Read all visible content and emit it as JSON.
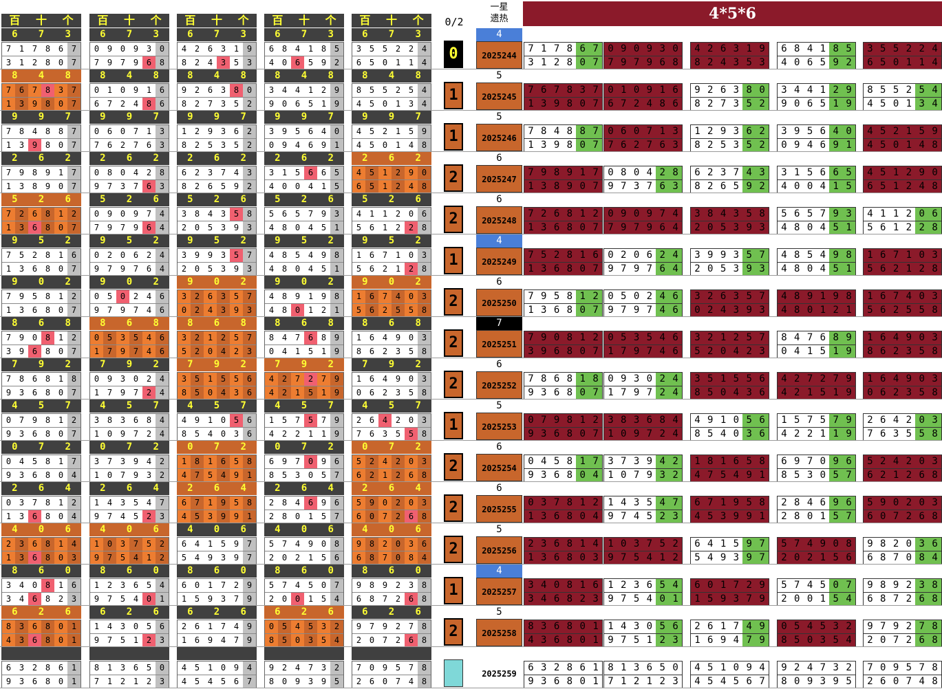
{
  "header": {
    "block_labels": [
      "百",
      "十",
      "个"
    ],
    "count_label": "0/2",
    "yixing_label": "一星\n遗热",
    "banner": "4*5*6"
  },
  "colors": {
    "dark": "#404040",
    "orange": "#ed7d31",
    "darkorange": "#c8662c",
    "red": "#8b1a2a",
    "green": "#70c050",
    "pink": "#f06070",
    "gray": "#c0c0c0",
    "blue": "#4a7fd8",
    "yellow": "#ffff33"
  },
  "rows": [
    {
      "top": [
        "6",
        "7",
        "3"
      ],
      "count": "0",
      "yx": "4",
      "period": "2025244",
      "r1": "717867",
      "r2": "312807",
      "r1b": "090930",
      "r2b": "797968",
      "r1c": "426319",
      "r2c": "824353",
      "r1d": "684185",
      "r2d": "406592",
      "r1e": "355224",
      "r2e": "650114"
    },
    {
      "top": [
        "8",
        "4",
        "8"
      ],
      "count": "1",
      "yx": "5",
      "period": "2025245",
      "r1": "767837",
      "r2": "139807",
      "r1b": "010916",
      "r2b": "672486",
      "r1c": "926380",
      "r2c": "827352",
      "r1d": "344129",
      "r2d": "906519",
      "r1e": "855254",
      "r2e": "450134"
    },
    {
      "top": [
        "9",
        "9",
        "7"
      ],
      "count": "1",
      "yx": "5",
      "period": "2025246",
      "r1": "784887",
      "r2": "139807",
      "r1b": "060713",
      "r2b": "762763",
      "r1c": "129362",
      "r2c": "825352",
      "r1d": "395640",
      "r2d": "094691",
      "r1e": "452159",
      "r2e": "450148"
    },
    {
      "top": [
        "2",
        "6",
        "2"
      ],
      "count": "2",
      "yx": "6",
      "period": "2025247",
      "r1": "798917",
      "r2": "138907",
      "r1b": "080428",
      "r2b": "973763",
      "r1c": "623743",
      "r2c": "826592",
      "r1d": "315665",
      "r2d": "400415",
      "r1e": "451290",
      "r2e": "651248"
    },
    {
      "top": [
        "5",
        "2",
        "6"
      ],
      "count": "2",
      "yx": "6",
      "period": "2025248",
      "r1": "726812",
      "r2": "136807",
      "r1b": "090974",
      "r2b": "797964",
      "r1c": "384358",
      "r2c": "205393",
      "r1d": "565793",
      "r2d": "480451",
      "r1e": "411206",
      "r2e": "561228"
    },
    {
      "top": [
        "9",
        "5",
        "2"
      ],
      "count": "1",
      "yx": "4",
      "period": "2025249",
      "r1": "752816",
      "r2": "136807",
      "r1b": "020624",
      "r2b": "979764",
      "r1c": "399357",
      "r2c": "205393",
      "r1d": "485498",
      "r2d": "480451",
      "r1e": "167103",
      "r2e": "562128"
    },
    {
      "top": [
        "9",
        "0",
        "2"
      ],
      "count": "2",
      "yx": "6",
      "period": "2025250",
      "r1": "795812",
      "r2": "136807",
      "r1b": "050246",
      "r2b": "979746",
      "r1c": "326357",
      "r2c": "024393",
      "r1d": "489198",
      "r2d": "480121",
      "r1e": "167403",
      "r2e": "562558"
    },
    {
      "top": [
        "8",
        "6",
        "8"
      ],
      "count": "2",
      "yx": "7",
      "period": "2025251",
      "r1": "790812",
      "r2": "396807",
      "r1b": "053546",
      "r2b": "179746",
      "r1c": "321257",
      "r2c": "520423",
      "r1d": "847689",
      "r2d": "041519",
      "r1e": "164903",
      "r2e": "862358"
    },
    {
      "top": [
        "7",
        "9",
        "2"
      ],
      "count": "2",
      "yx": "6",
      "period": "2025252",
      "r1": "786818",
      "r2": "936807",
      "r1b": "093024",
      "r2b": "179724",
      "r1c": "351556",
      "r2c": "850436",
      "r1d": "427279",
      "r2d": "421519",
      "r1e": "164903",
      "r2e": "062358"
    },
    {
      "top": [
        "4",
        "5",
        "7"
      ],
      "count": "1",
      "yx": "5",
      "period": "2025253",
      "r1": "079812",
      "r2": "936807",
      "r1b": "383684",
      "r2b": "109724",
      "r1c": "491056",
      "r2c": "854036",
      "r1d": "157579",
      "r2d": "422119",
      "r1e": "264203",
      "r2e": "763558"
    },
    {
      "top": [
        "0",
        "7",
        "2"
      ],
      "count": "2",
      "yx": "6",
      "period": "2025254",
      "r1": "045817",
      "r2": "936804",
      "r1b": "373942",
      "r2b": "107932",
      "r1c": "181658",
      "r2c": "475491",
      "r1d": "697096",
      "r2d": "853057",
      "r1e": "524203",
      "r2e": "621268"
    },
    {
      "top": [
        "2",
        "6",
        "4"
      ],
      "count": "2",
      "yx": "6",
      "period": "2025255",
      "r1": "037812",
      "r2": "136804",
      "r1b": "143547",
      "r2b": "974523",
      "r1c": "671958",
      "r2c": "453991",
      "r1d": "284696",
      "r2d": "280157",
      "r1e": "590203",
      "r2e": "607268"
    },
    {
      "top": [
        "4",
        "0",
        "6"
      ],
      "count": "2",
      "yx": "5",
      "period": "2025256",
      "r1": "236814",
      "r2": "136803",
      "r1b": "103752",
      "r2b": "975412",
      "r1c": "641597",
      "r2c": "549397",
      "r1d": "574908",
      "r2d": "202156",
      "r1e": "982036",
      "r2e": "687084"
    },
    {
      "top": [
        "8",
        "6",
        "0"
      ],
      "count": "1",
      "yx": "4",
      "period": "2025257",
      "r1": "340816",
      "r2": "346823",
      "r1b": "123654",
      "r2b": "975401",
      "r1c": "601729",
      "r2c": "159379",
      "r1d": "574507",
      "r2d": "200154",
      "r1e": "989238",
      "r2e": "687268"
    },
    {
      "top": [
        "6",
        "2",
        "6"
      ],
      "count": "2",
      "yx": "5",
      "period": "2025258",
      "r1": "836801",
      "r2": "436801",
      "r1b": "143056",
      "r2b": "975123",
      "r1c": "261749",
      "r2c": "169479",
      "r1d": "054532",
      "r2d": "850354",
      "r1e": "979278",
      "r2e": "207268"
    },
    {
      "top": [
        "",
        "",
        ""
      ],
      "count": "",
      "yx": "",
      "period": "2025259",
      "r1": "632861",
      "r2": "936801",
      "r1b": "813650",
      "r2b": "712123",
      "r1c": "451094",
      "r2c": "454567",
      "r1d": "924732",
      "r2d": "809395",
      "r1e": "709578",
      "r2e": "260748"
    }
  ]
}
